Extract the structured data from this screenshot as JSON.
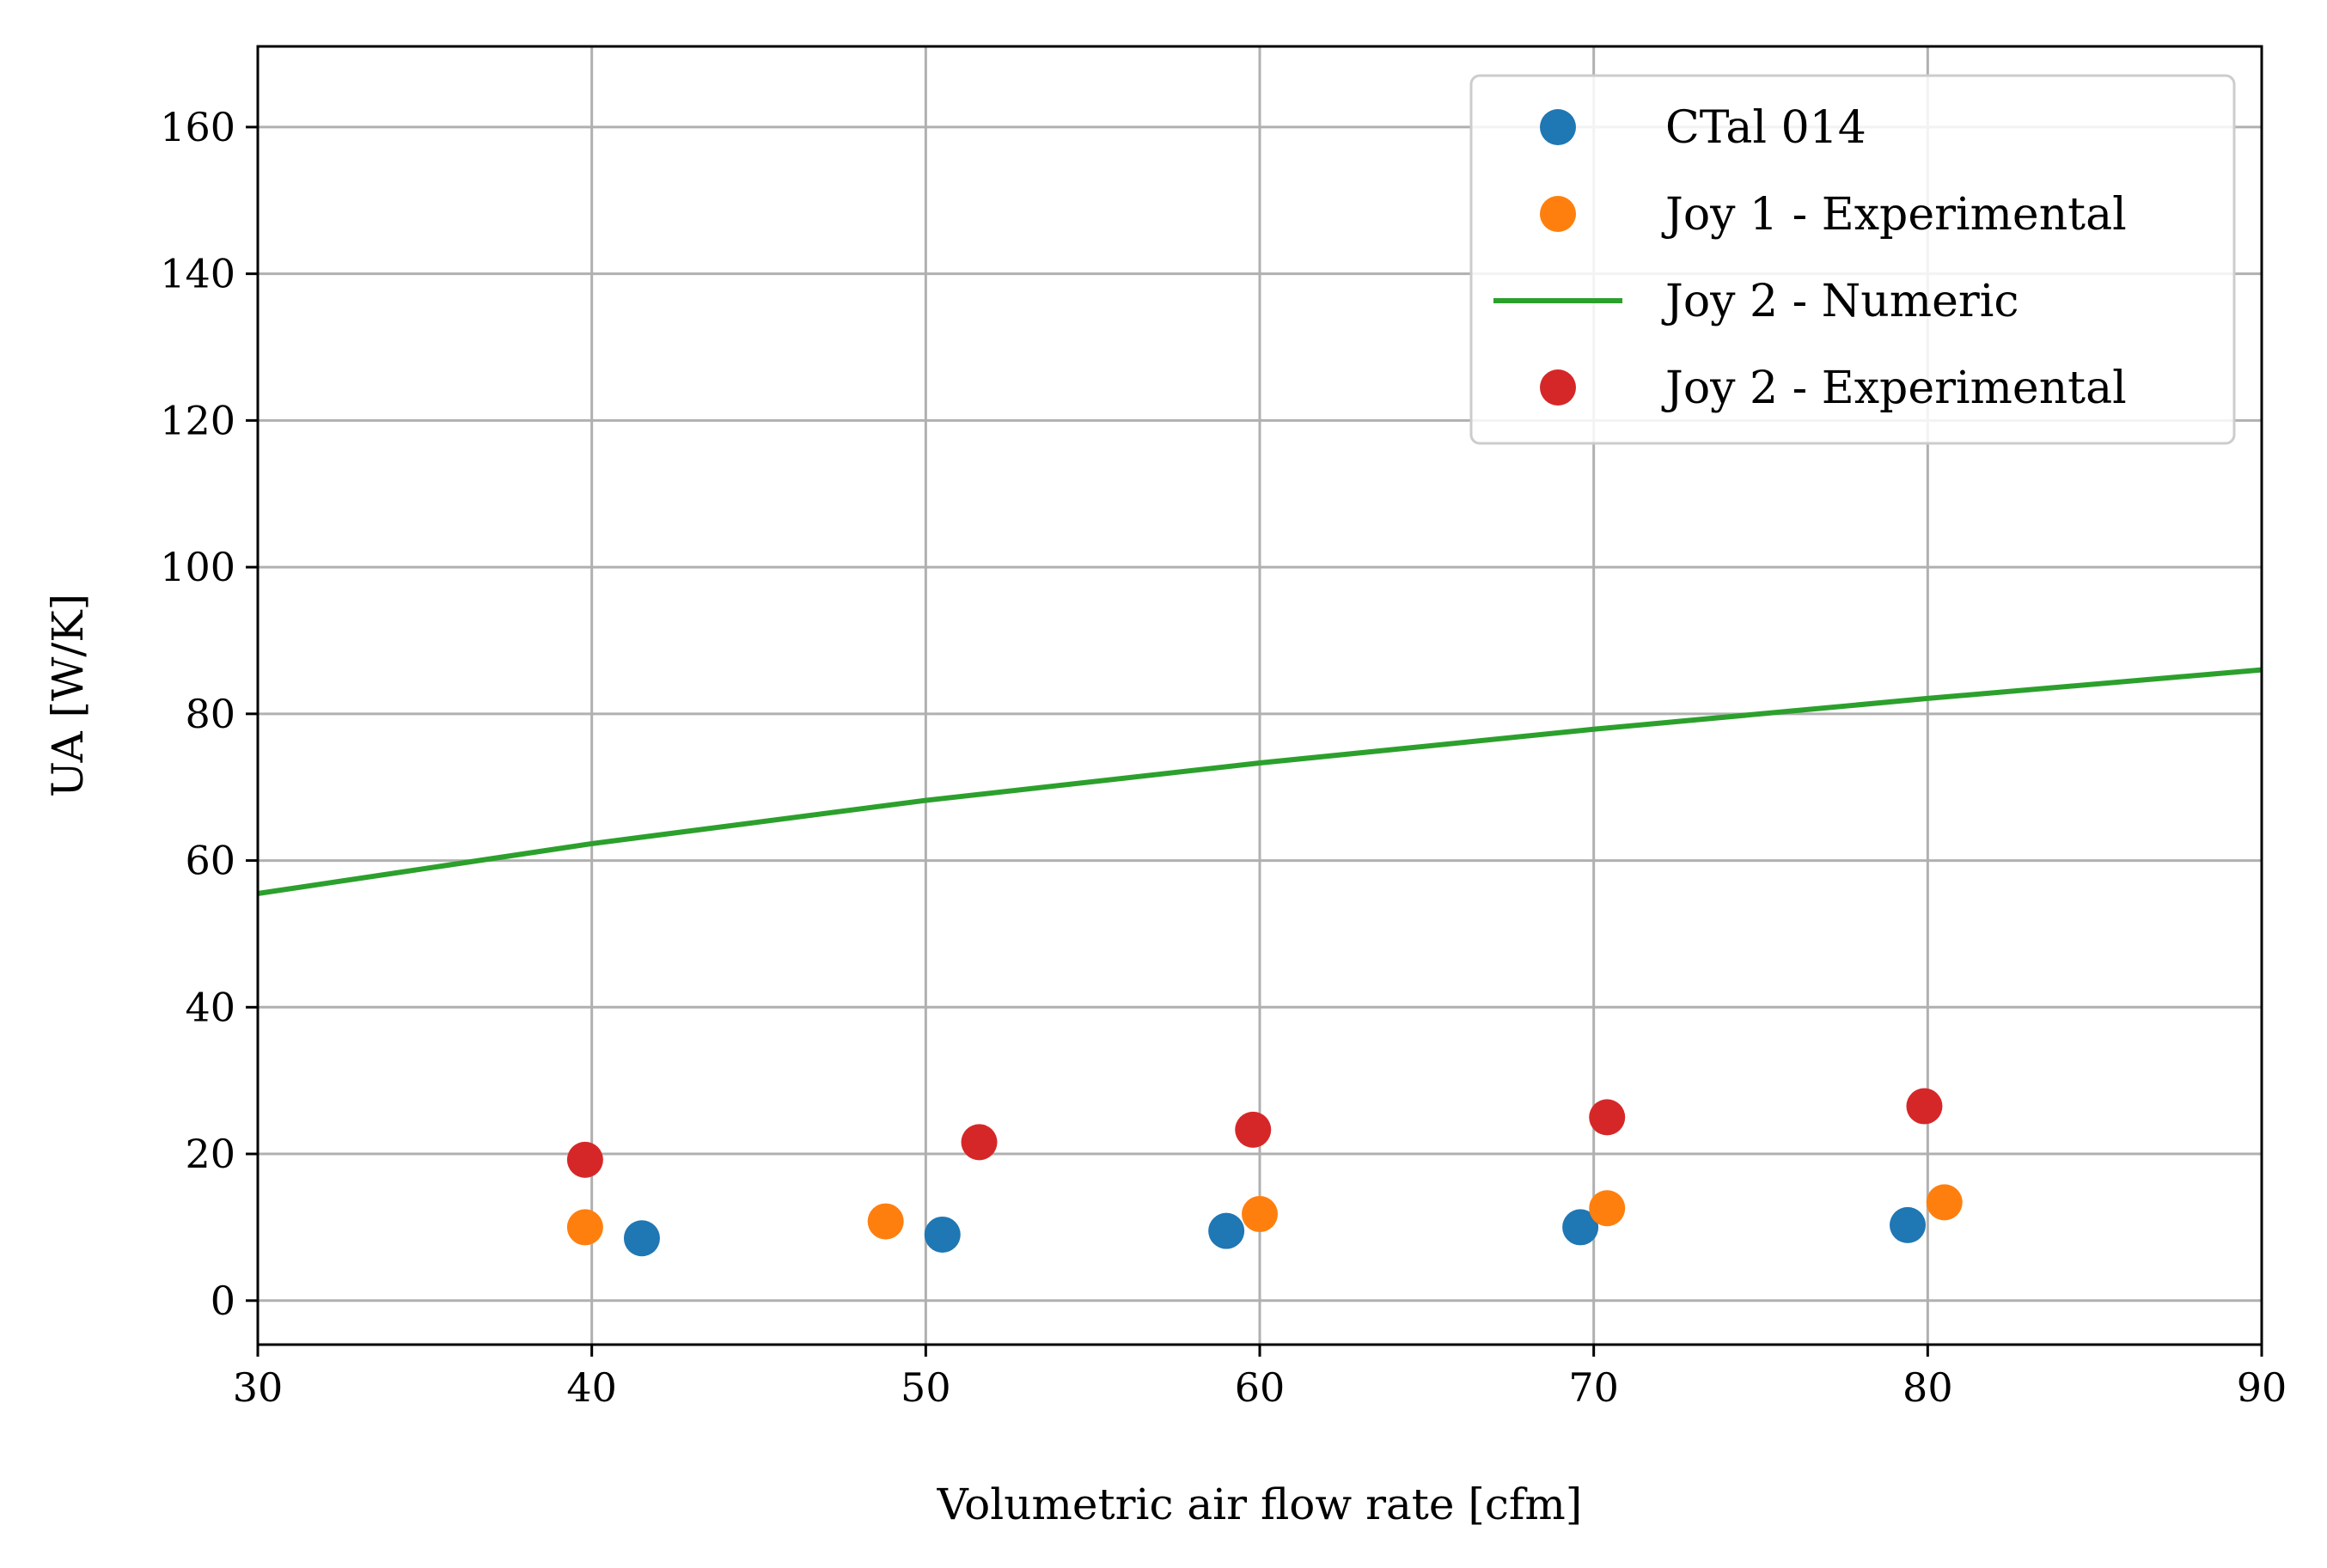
{
  "chart_data": {
    "type": "scatter",
    "title": "",
    "xlabel": "Volumetric air flow rate [cfm]",
    "ylabel": "UA [W/K]",
    "xlim": [
      30,
      90
    ],
    "ylim": [
      -6,
      171
    ],
    "xticks": [
      30,
      40,
      50,
      60,
      70,
      80,
      90
    ],
    "yticks": [
      0,
      20,
      40,
      60,
      80,
      100,
      120,
      140,
      160
    ],
    "grid": true,
    "legend_position": "top-right",
    "series": [
      {
        "name": "CTal 014",
        "kind": "scatter",
        "color": "#1f77b4",
        "x": [
          41.5,
          50.5,
          59.0,
          69.6,
          79.4
        ],
        "y": [
          8.5,
          9.0,
          9.5,
          10.0,
          10.3
        ]
      },
      {
        "name": "Joy 1 - Experimental",
        "kind": "scatter",
        "color": "#ff7f0e",
        "x": [
          39.8,
          48.8,
          60.0,
          70.4,
          80.5
        ],
        "y": [
          10.0,
          10.8,
          11.8,
          12.6,
          13.4
        ]
      },
      {
        "name": "Joy 2 - Numeric",
        "kind": "line",
        "color": "#2ca02c",
        "x": [
          30,
          40,
          50,
          60,
          70,
          80,
          90
        ],
        "y": [
          55.5,
          62.3,
          68.2,
          73.3,
          77.9,
          82.1,
          86.0
        ]
      },
      {
        "name": "Joy 2 - Experimental",
        "kind": "scatter",
        "color": "#d62728",
        "x": [
          39.8,
          51.6,
          59.8,
          70.4,
          79.9
        ],
        "y": [
          19.2,
          21.6,
          23.3,
          25.0,
          26.5
        ]
      }
    ]
  }
}
